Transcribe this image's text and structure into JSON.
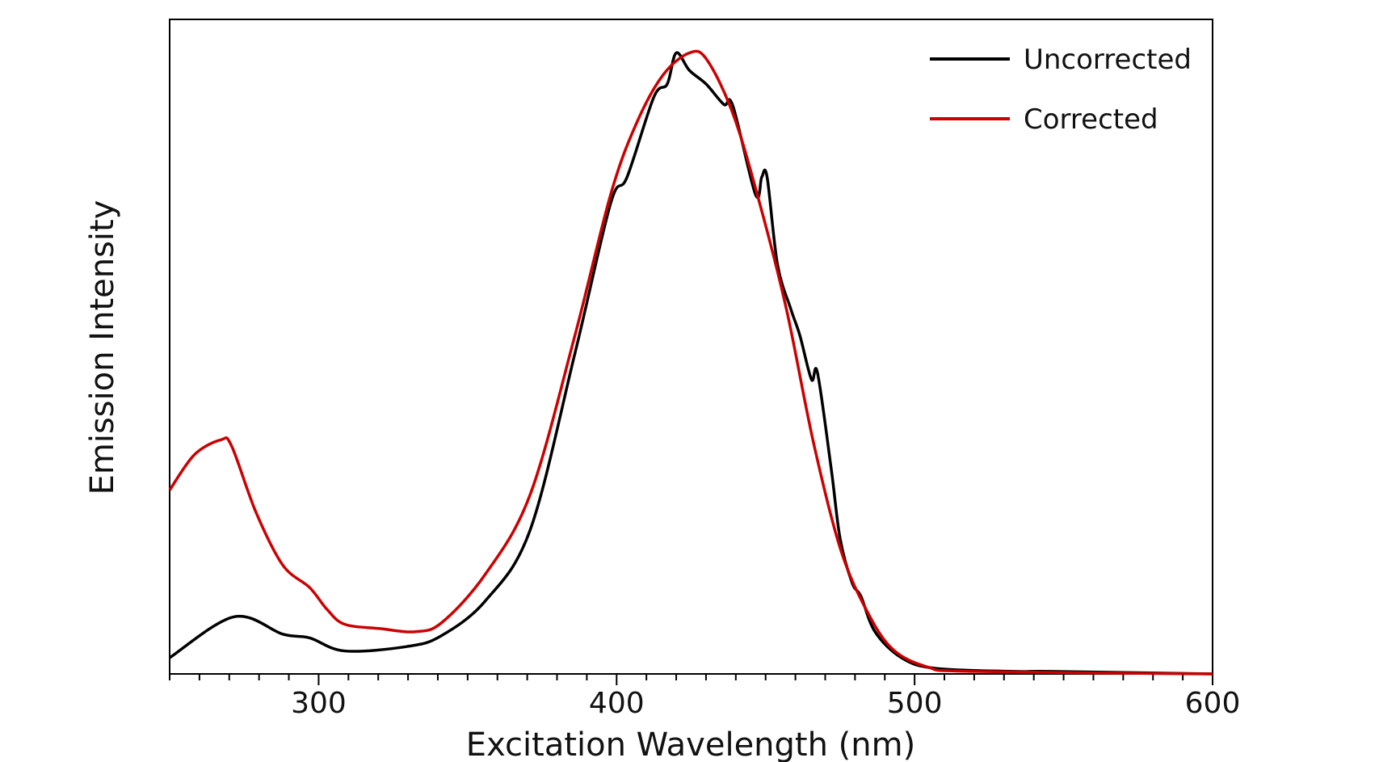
{
  "chart_data": {
    "type": "line",
    "title": "",
    "xlabel": "Excitation Wavelength (nm)",
    "ylabel": "Emission Intensity",
    "xlim": [
      250,
      600
    ],
    "ylim": [
      0,
      1.054
    ],
    "x_ticks": [
      300,
      400,
      500,
      600
    ],
    "x_minor_step": 10,
    "y_ticks_shown": false,
    "grid": false,
    "legend_position": "top-right",
    "series": [
      {
        "name": "Uncorrected",
        "color": "#000000",
        "points": [
          [
            250,
            0.026
          ],
          [
            271.6,
            0.092
          ],
          [
            288,
            0.064
          ],
          [
            297,
            0.058
          ],
          [
            308.7,
            0.037
          ],
          [
            329.5,
            0.044
          ],
          [
            341,
            0.061
          ],
          [
            356,
            0.118
          ],
          [
            371,
            0.232
          ],
          [
            386,
            0.516
          ],
          [
            398,
            0.758
          ],
          [
            403.5,
            0.8
          ],
          [
            412.5,
            0.929
          ],
          [
            417,
            0.95
          ],
          [
            420,
            1.0
          ],
          [
            424.4,
            0.972
          ],
          [
            430,
            0.95
          ],
          [
            436,
            0.917
          ],
          [
            439,
            0.915
          ],
          [
            446.6,
            0.772
          ],
          [
            448.7,
            0.8
          ],
          [
            450.5,
            0.8
          ],
          [
            454,
            0.659
          ],
          [
            458.5,
            0.587
          ],
          [
            461.5,
            0.545
          ],
          [
            465.4,
            0.474
          ],
          [
            467.4,
            0.485
          ],
          [
            472,
            0.331
          ],
          [
            475,
            0.218
          ],
          [
            479,
            0.147
          ],
          [
            482,
            0.125
          ],
          [
            486.7,
            0.068
          ],
          [
            495.6,
            0.026
          ],
          [
            507,
            0.009
          ],
          [
            534,
            0.004
          ],
          [
            546,
            0.004
          ],
          [
            600,
            0.0
          ]
        ]
      },
      {
        "name": "Corrected",
        "color": "#cc0000",
        "points": [
          [
            250,
            0.296
          ],
          [
            258.3,
            0.353
          ],
          [
            267.2,
            0.377
          ],
          [
            270.8,
            0.367
          ],
          [
            279,
            0.26
          ],
          [
            288,
            0.175
          ],
          [
            297,
            0.139
          ],
          [
            302.8,
            0.104
          ],
          [
            308.7,
            0.08
          ],
          [
            320.6,
            0.073
          ],
          [
            332.5,
            0.068
          ],
          [
            341.4,
            0.083
          ],
          [
            356,
            0.161
          ],
          [
            371,
            0.289
          ],
          [
            386,
            0.545
          ],
          [
            398,
            0.772
          ],
          [
            406.6,
            0.886
          ],
          [
            415.5,
            0.964
          ],
          [
            424.4,
            1.0
          ],
          [
            430.3,
            0.989
          ],
          [
            439.2,
            0.9
          ],
          [
            448,
            0.758
          ],
          [
            457,
            0.587
          ],
          [
            466,
            0.374
          ],
          [
            475,
            0.203
          ],
          [
            483.7,
            0.104
          ],
          [
            492.6,
            0.04
          ],
          [
            504.5,
            0.011
          ],
          [
            519,
            0.004
          ],
          [
            600,
            0.0
          ]
        ]
      }
    ]
  }
}
